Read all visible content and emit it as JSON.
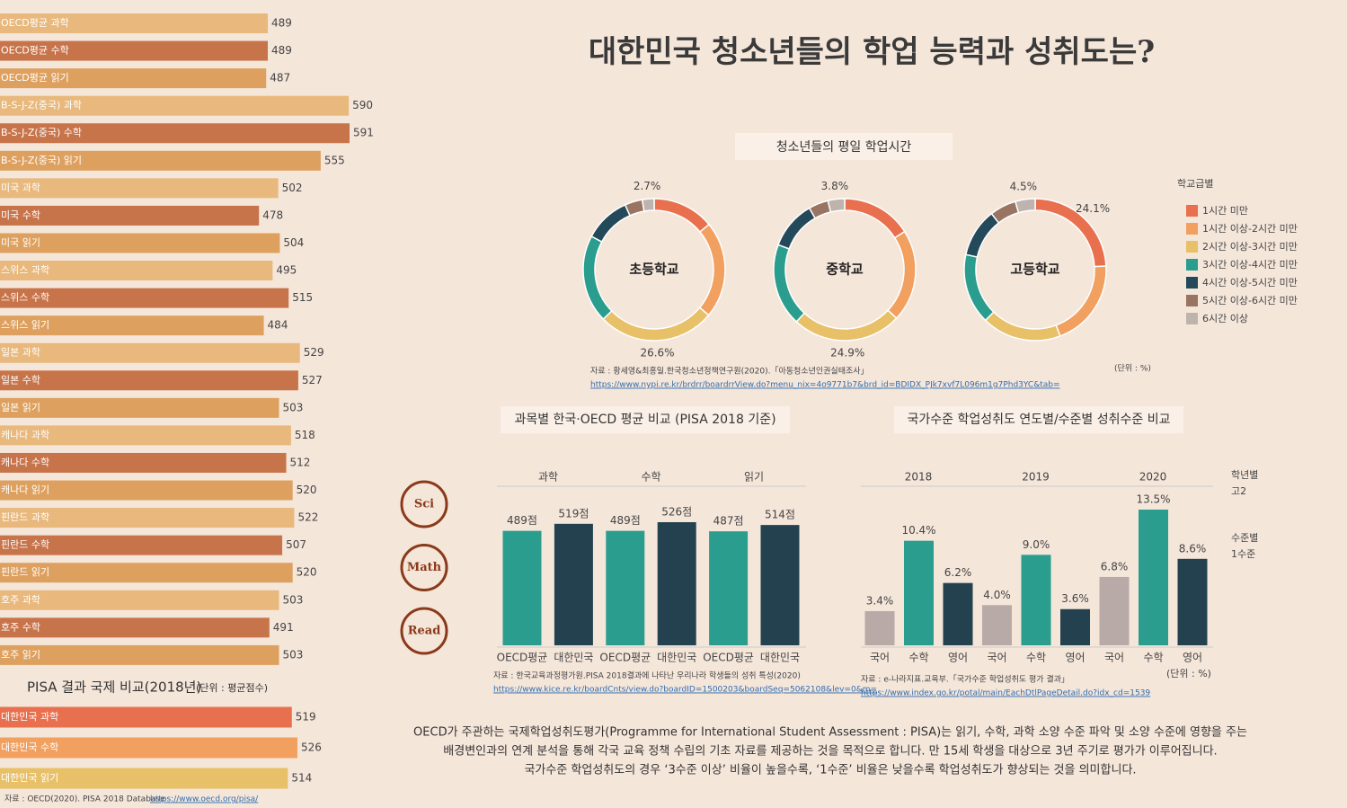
{
  "title": "대한민국 청소년들의 학업 능력과 성취도는?",
  "description": [
    "OECD가 주관하는 국제학업성취도평가(Programme for International Student Assessment : PISA)는 읽기, 수학, 과학 소양 수준 파악 및 소양 수준에 영향을 주는",
    "배경변인과의 연계 분석을 통해 각국 교육 정책 수립의 기초 자료를 제공하는 것을 목적으로 합니다. 만 15세 학생을 대상으로 3년 주기로 평가가 이루어집니다.",
    "국가수준 학업성취도의 경우 ‘3수준 이상’ 비율이 높을수록, ‘1수준’ 비율은 낮을수록 학업성취도가 향상되는 것을 의미합니다."
  ],
  "chart_data": [
    {
      "type": "hbar",
      "categories": [
        "OECD평균 과학",
        "OECD평균 수학",
        "OECD평균 읽기",
        "B-S-J-Z(중국) 과학",
        "B-S-J-Z(중국) 수학",
        "B-S-J-Z(중국) 읽기",
        "미국 과학",
        "미국 수학",
        "미국 읽기",
        "스위스 과학",
        "스위스 수학",
        "스위스 읽기",
        "일본 과학",
        "일본 수학",
        "일본 읽기",
        "캐나다 과학",
        "캐나다 수학",
        "캐나다 읽기",
        "핀란드 과학",
        "핀란드 수학",
        "핀란드 읽기",
        "호주 과학",
        "호주 수학",
        "호주 읽기"
      ],
      "values": [
        489,
        489,
        487,
        590,
        591,
        555,
        502,
        478,
        504,
        495,
        515,
        484,
        529,
        527,
        503,
        518,
        512,
        520,
        522,
        507,
        520,
        503,
        491,
        503
      ],
      "colors": [
        "#e8b87c",
        "#c8744a",
        "#dea05e",
        "#e8b87c",
        "#c8744a",
        "#dea05e",
        "#e8b87c",
        "#c8744a",
        "#dea05e",
        "#e8b87c",
        "#c8744a",
        "#dea05e",
        "#e8b87c",
        "#c8744a",
        "#dea05e",
        "#e8b87c",
        "#c8744a",
        "#dea05e",
        "#e8b87c",
        "#c8744a",
        "#dea05e",
        "#e8b87c",
        "#c8744a",
        "#dea05e"
      ]
    },
    {
      "type": "hbar",
      "title": "PISA 결과 국제 비교(2018년)",
      "subtitle": "(단위 : 평균점수)",
      "categories": [
        "대한민국 과학",
        "대한민국 수학",
        "대한민국 읽기"
      ],
      "values": [
        519,
        526,
        514
      ],
      "colors": [
        "#e8704e",
        "#f2a060",
        "#e8c068"
      ],
      "source": "자료 : OECD(2020). PISA 2018 Database",
      "source_url": "https://www.oecd.org/pisa/"
    },
    {
      "type": "donut",
      "title": "청소년들의 평일 학업시간",
      "legend_title": "학교급별",
      "categories": [
        "1시간 미만",
        "1시간 이상-2시간 미만",
        "2시간 이상-3시간 미만",
        "3시간 이상-4시간 미만",
        "4시간 이상-5시간 미만",
        "5시간 이상-6시간 미만",
        "6시간 이상"
      ],
      "colors": [
        "#e8704e",
        "#f2a060",
        "#e8c068",
        "#2a9d8f",
        "#24495a",
        "#9a7462",
        "#bfb3ae"
      ],
      "series": [
        {
          "name": "초등학교",
          "values": [
            14,
            22,
            26.6,
            20,
            10.5,
            4,
            2.7
          ],
          "value_labels": [
            null,
            null,
            "26.6%",
            null,
            null,
            null,
            "2.7%"
          ]
        },
        {
          "name": "중학교",
          "values": [
            16,
            21,
            24.9,
            18.8,
            11,
            4.5,
            3.8
          ],
          "value_labels": [
            null,
            null,
            "24.9%",
            null,
            null,
            null,
            "3.8%"
          ]
        },
        {
          "name": "고등학교",
          "values": [
            24.1,
            20,
            18,
            16,
            11,
            6,
            4.5
          ],
          "value_labels": [
            "24.1%",
            null,
            null,
            null,
            null,
            null,
            "4.5%"
          ]
        }
      ],
      "unit": "(단위 : %)",
      "source": "자료 : 황세영&최홍일.한국청소년정책연구원(2020).「아동청소년인권실태조사」",
      "source_url": "https://www.nypi.re.kr/brdrr/boardrrView.do?menu_nix=4o9771b7&brd_id=BDIDX_PJk7xvf7L096m1g7Phd3YC&tab="
    },
    {
      "type": "bar",
      "title": "과목별 한국·OECD 평균 비교 (PISA 2018 기준)",
      "groups": [
        "과학",
        "수학",
        "읽기"
      ],
      "icons": [
        "Sci",
        "Math",
        "Read"
      ],
      "categories": [
        "OECD평균",
        "대한민국",
        "OECD평균",
        "대한민국",
        "OECD평균",
        "대한민국"
      ],
      "values": [
        489,
        519,
        489,
        526,
        487,
        514
      ],
      "value_labels": [
        "489점",
        "519점",
        "489점",
        "526점",
        "487점",
        "514점"
      ],
      "colors": [
        "#2a9d8f",
        "#24414f",
        "#2a9d8f",
        "#24414f",
        "#2a9d8f",
        "#24414f"
      ],
      "source": "자료 : 한국교육과정평가원.PISA 2018결과에 나타난 우리나라 학생들의 성취 특성(2020)",
      "source_url": "https://www.kice.re.kr/boardCnts/view.do?boardID=1500203&boardSeq=5062108&lev=0&m="
    },
    {
      "type": "bar",
      "title": "국가수준 학업성취도 연도별/수준별 성취수준 비교",
      "groups": [
        "2018",
        "2019",
        "2020"
      ],
      "categories": [
        "국어",
        "수학",
        "영어",
        "국어",
        "수학",
        "영어",
        "국어",
        "수학",
        "영어"
      ],
      "values": [
        3.4,
        10.4,
        6.2,
        4.0,
        9.0,
        3.6,
        6.8,
        13.5,
        8.6
      ],
      "value_labels": [
        "3.4%",
        "10.4%",
        "6.2%",
        "4.0%",
        "9.0%",
        "3.6%",
        "6.8%",
        "13.5%",
        "8.6%"
      ],
      "colors": [
        "#b8aba7",
        "#2a9d8f",
        "#24414f",
        "#b8aba7",
        "#2a9d8f",
        "#24414f",
        "#b8aba7",
        "#2a9d8f",
        "#24414f"
      ],
      "notes": [
        "학년별",
        "고2",
        "수준별",
        "1수준"
      ],
      "unit": "(단위 : %)",
      "source": "자료 : e-나라지표.교육부.「국가수준 학업성취도 평가 결과」",
      "source_url": "https://www.index.go.kr/potal/main/EachDtlPageDetail.do?idx_cd=1539"
    }
  ]
}
